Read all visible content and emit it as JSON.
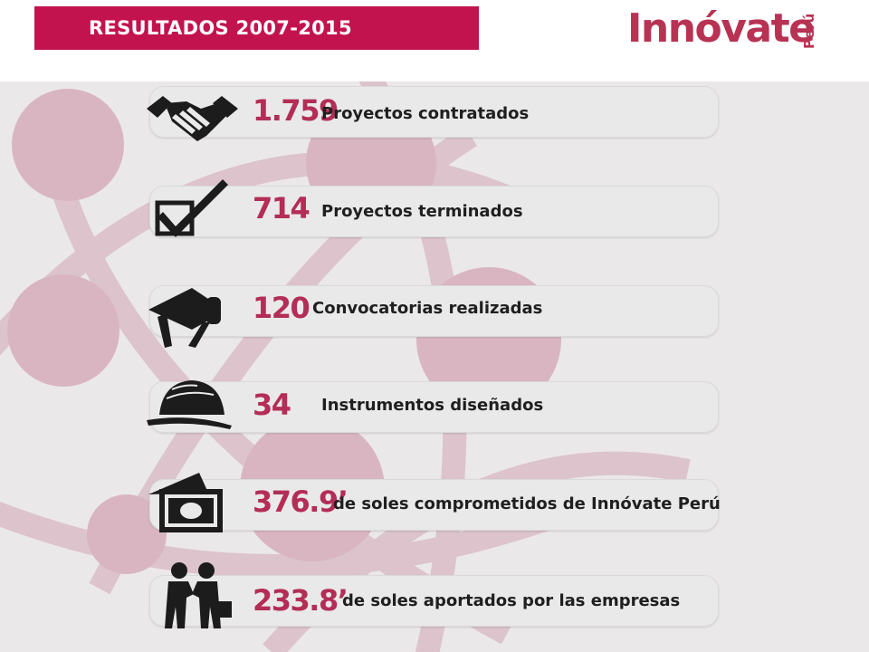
{
  "header": {
    "title": "RESULTADOS 2007-2015",
    "logo_text": "Innóvate",
    "logo_sub": "Perú"
  },
  "colors": {
    "banner": "#c3134e",
    "accent_number": "#b32d57",
    "logo": "#b83253"
  },
  "results": [
    {
      "icon": "handshake-icon",
      "number": "1.759",
      "label": "Proyectos contratados"
    },
    {
      "icon": "checkbox-icon",
      "number": "714",
      "label": "Proyectos terminados"
    },
    {
      "icon": "megaphone-icon",
      "number": "120",
      "label": "Convocatorias realizadas"
    },
    {
      "icon": "hardhat-icon",
      "number": "34",
      "label": "Instrumentos diseñados"
    },
    {
      "icon": "money-icon",
      "number": "376.9’",
      "label": "de soles comprometidos de Innóvate Perú"
    },
    {
      "icon": "business-handshake-icon",
      "number": "233.8’",
      "label": "de soles aportados por las empresas"
    }
  ]
}
